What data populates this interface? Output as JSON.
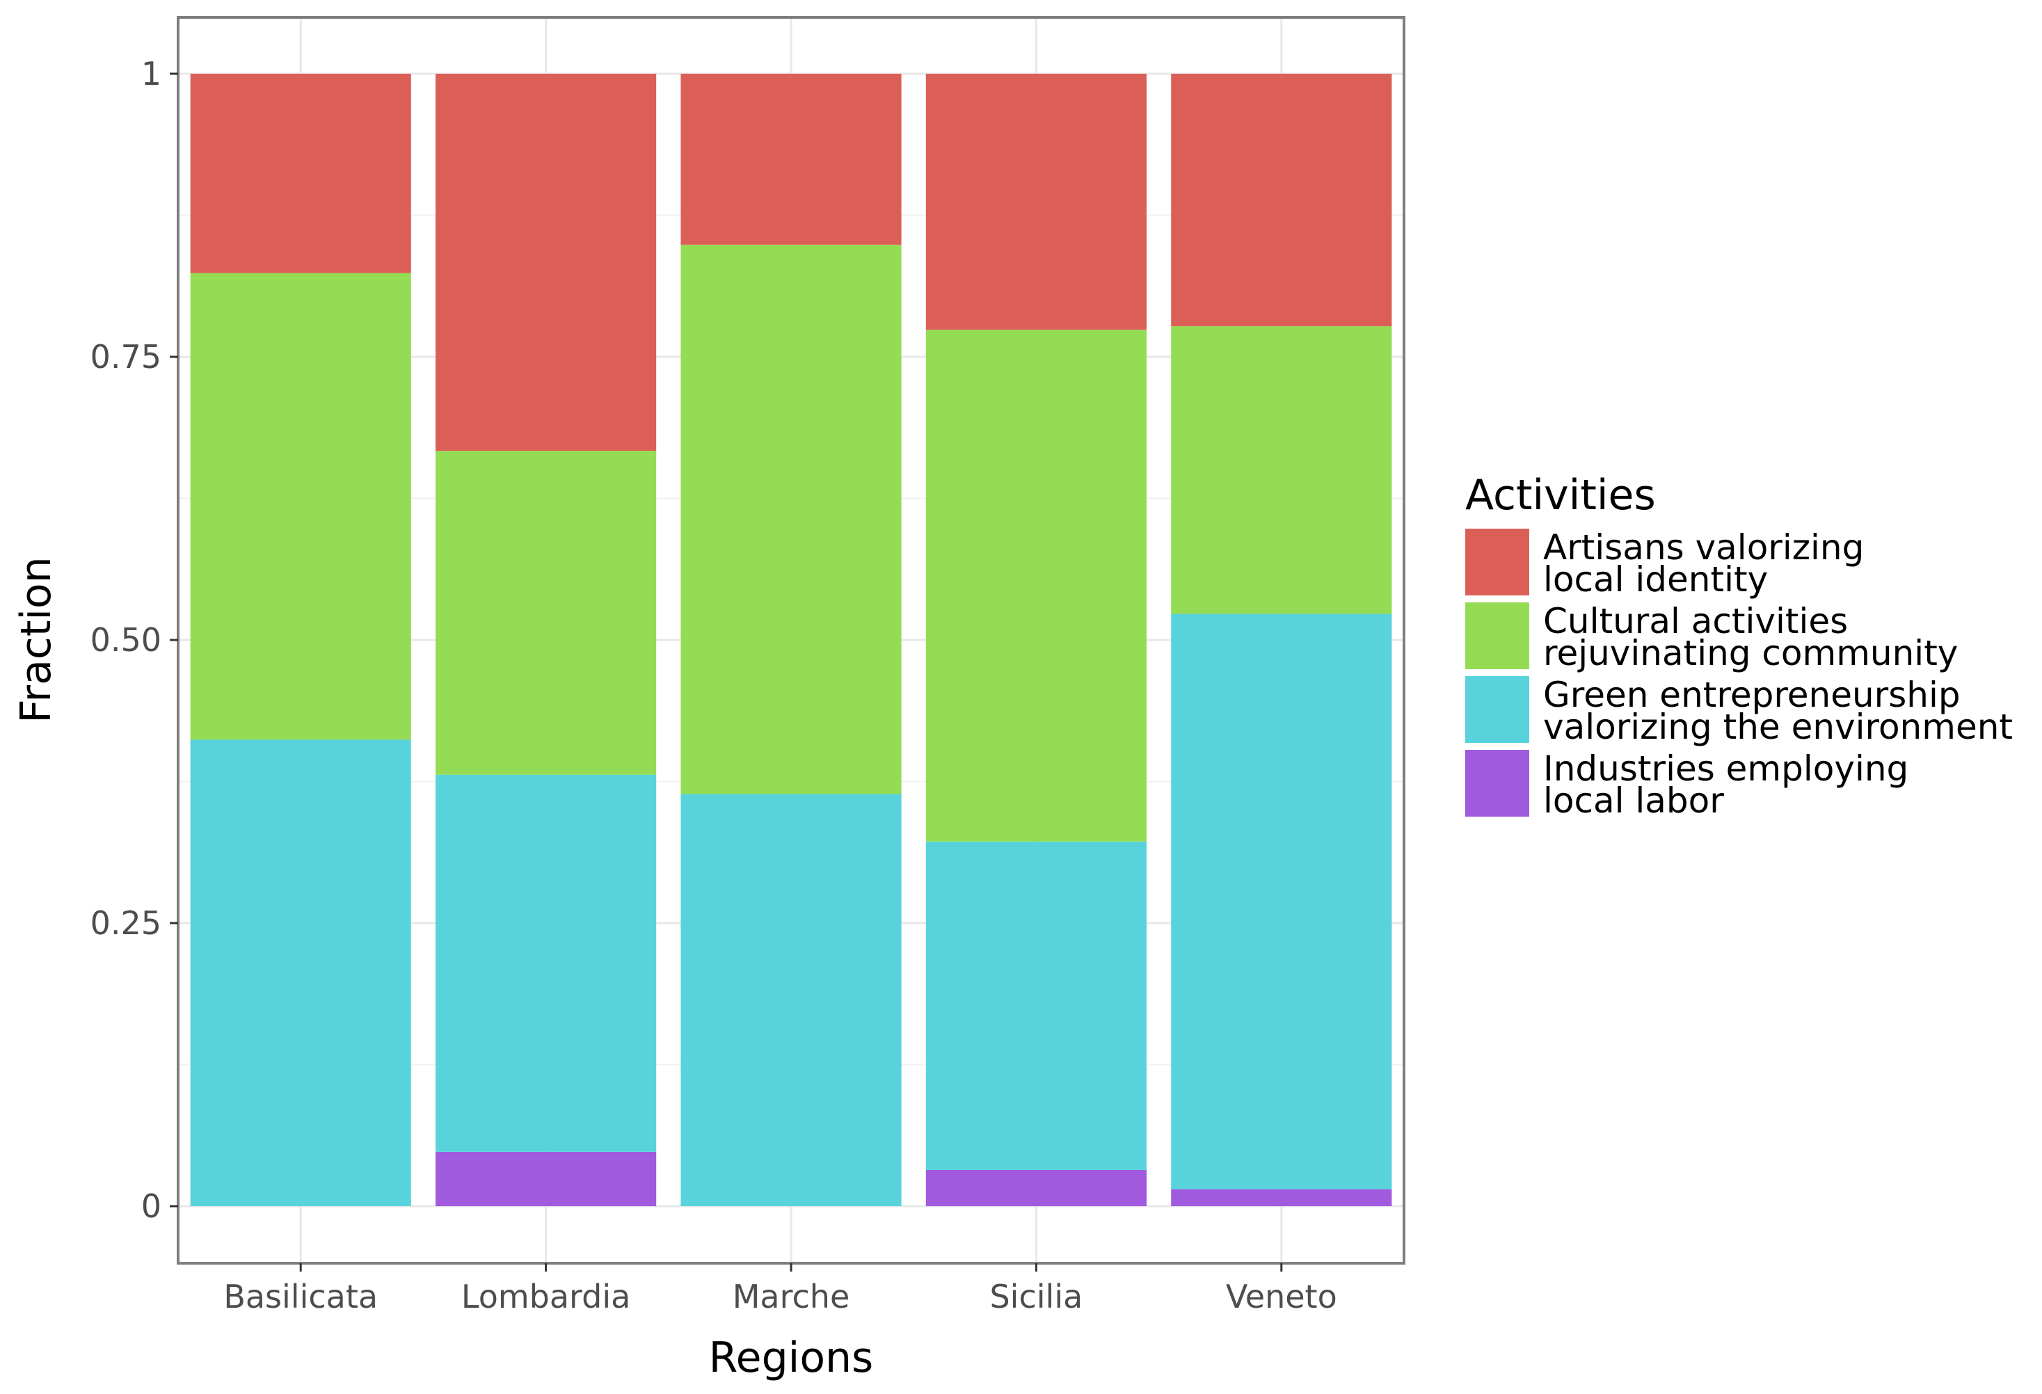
{
  "chart_data": {
    "type": "bar",
    "stacked": true,
    "title": "",
    "xlabel": "Regions",
    "ylabel": "Fraction",
    "ylim": [
      -0.05,
      1.05
    ],
    "yticks": [
      {
        "value": 0,
        "label": "0"
      },
      {
        "value": 0.25,
        "label": "0.25"
      },
      {
        "value": 0.5,
        "label": "0.50"
      },
      {
        "value": 0.75,
        "label": "0.75"
      },
      {
        "value": 1,
        "label": "1"
      }
    ],
    "categories": [
      "Basilicata",
      "Lombardia",
      "Marche",
      "Sicilia",
      "Veneto"
    ],
    "series": [
      {
        "name": "Industries employing local labor",
        "label_lines": [
          "Industries employing",
          "local labor"
        ],
        "color": "#a05ade",
        "values": [
          0,
          0.048,
          0,
          0.032,
          0.015
        ]
      },
      {
        "name": "Green entrepreneurship valorizing the environment",
        "label_lines": [
          "Green entrepreneurship",
          "valorizing the environment"
        ],
        "color": "#58d3db",
        "values": [
          0.412,
          0.333,
          0.364,
          0.29,
          0.508
        ]
      },
      {
        "name": "Cultural activities rejuvinating community",
        "label_lines": [
          "Cultural activities",
          "rejuvinating community"
        ],
        "color": "#95dc55",
        "values": [
          0.412,
          0.286,
          0.485,
          0.452,
          0.254
        ]
      },
      {
        "name": "Artisans valorizing local identity",
        "label_lines": [
          "Artisans valorizing",
          "local identity"
        ],
        "color": "#dc5f57",
        "values": [
          0.176,
          0.333,
          0.151,
          0.226,
          0.223
        ]
      }
    ],
    "legend": {
      "title": "Activities",
      "position": "right",
      "order": [
        3,
        2,
        1,
        0
      ]
    },
    "grid": true,
    "panel_border": true
  }
}
